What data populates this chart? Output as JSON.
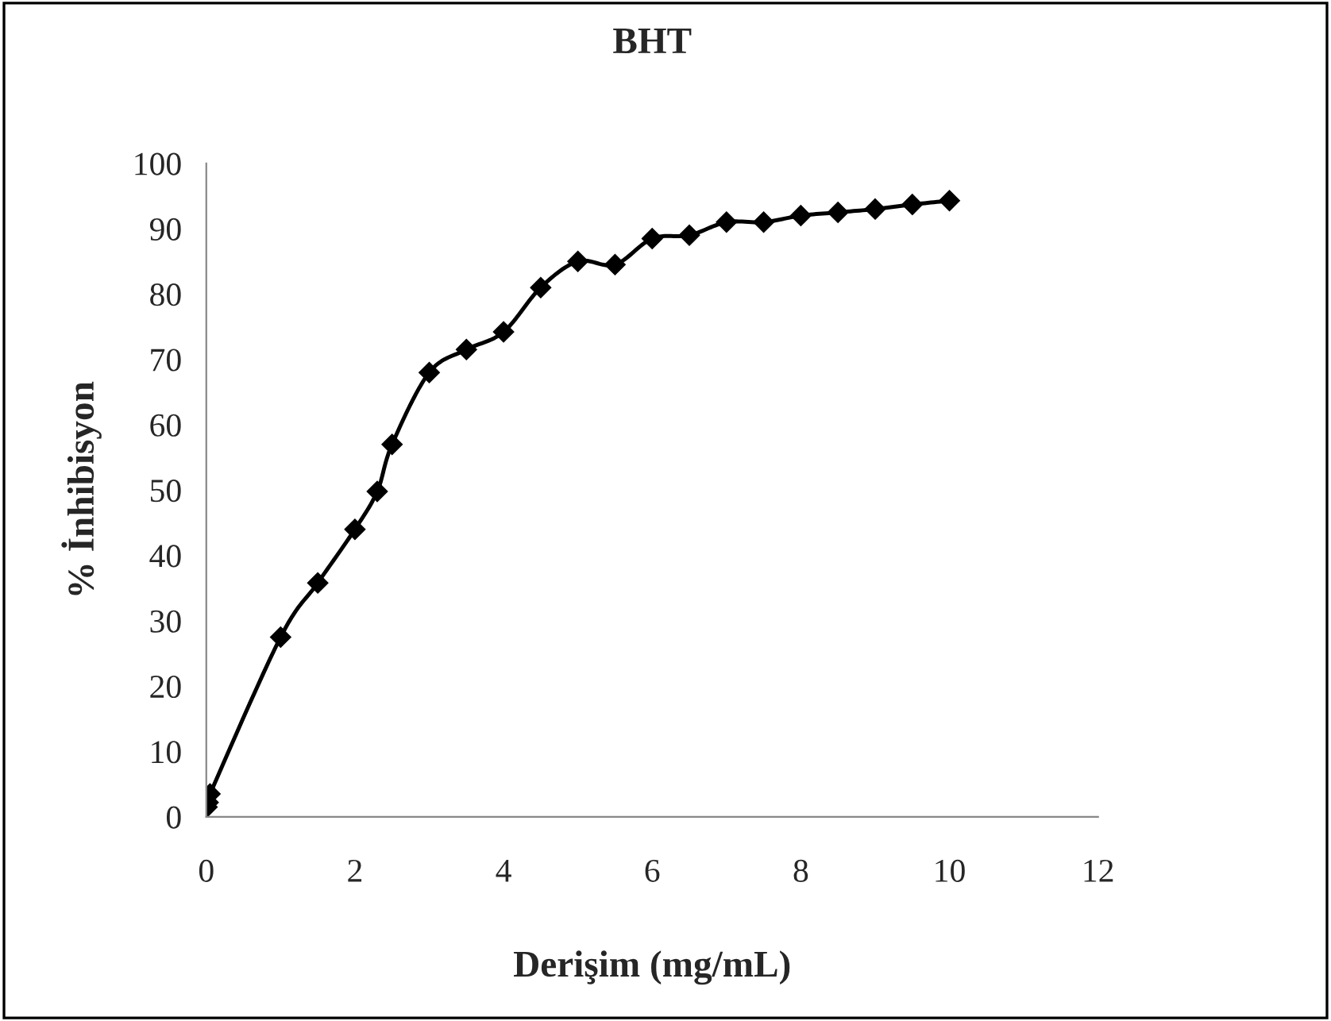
{
  "chart_data": {
    "type": "line",
    "title": "BHT",
    "xlabel": "Derişim (mg/mL)",
    "ylabel": "% İnhibisyon",
    "x": [
      0.01,
      0.025,
      0.05,
      1,
      1.5,
      2,
      2.3,
      2.5,
      3,
      3.5,
      4,
      4.5,
      5,
      5.5,
      6,
      6.5,
      7,
      7.5,
      8,
      8.5,
      9,
      9.5,
      10
    ],
    "series": [
      {
        "color": "#000000",
        "values": [
          1.5,
          2.2,
          3.5,
          27.5,
          35.8,
          44,
          49.8,
          57,
          68,
          71.5,
          74.2,
          81,
          85,
          84.5,
          88.5,
          89,
          91,
          91,
          92,
          92.5,
          93,
          93.7,
          94.3
        ]
      }
    ],
    "xlim": [
      0,
      12
    ],
    "xticks": [
      0,
      2,
      4,
      6,
      8,
      10,
      12
    ],
    "ylim": [
      0,
      100
    ],
    "yticks": [
      0,
      10,
      20,
      30,
      40,
      50,
      60,
      70,
      80,
      90,
      100
    ],
    "marker": "diamond",
    "line_style": "solid",
    "grid": false,
    "legend": false
  }
}
